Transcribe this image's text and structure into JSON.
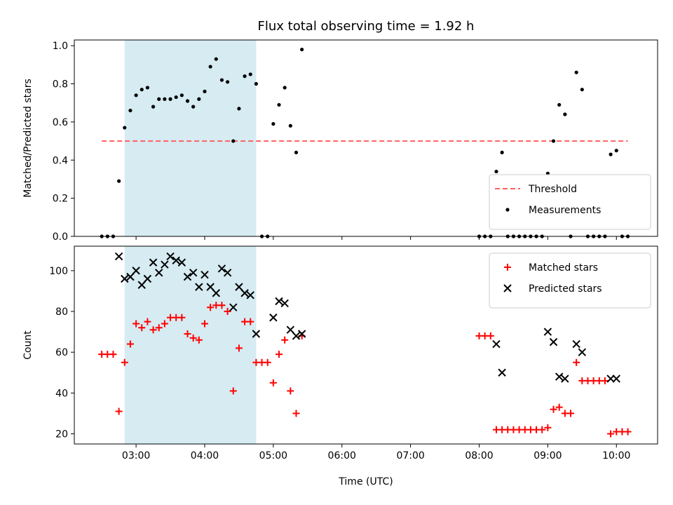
{
  "chart_data": {
    "title": "Flux total observing time = 1.92 h",
    "shared_x": {
      "label": "Time (UTC)",
      "range_hours": [
        2.1,
        10.6
      ],
      "ticks": [
        "03:00",
        "04:00",
        "05:00",
        "06:00",
        "07:00",
        "08:00",
        "09:00",
        "10:00"
      ],
      "shaded_interval": {
        "start": "02:50",
        "end": "04:45",
        "color": "#add8e6"
      }
    },
    "panels": [
      {
        "type": "scatter",
        "ylabel": "Matched/Predicted stars",
        "ylim": [
          0,
          1.03
        ],
        "yticks": [
          "0.0",
          "0.2",
          "0.4",
          "0.6",
          "0.8",
          "1.0"
        ],
        "legend_position": "lower-right",
        "threshold": {
          "name": "Threshold",
          "value": 0.5,
          "x_start": "02:30",
          "x_end": "10:10",
          "color": "#ff6060",
          "style": "dashed"
        },
        "series": [
          {
            "name": "Measurements",
            "color": "#000000",
            "points": [
              [
                "02:30",
                0
              ],
              [
                "02:35",
                0
              ],
              [
                "02:40",
                0
              ],
              [
                "02:45",
                0.29
              ],
              [
                "02:50",
                0.57
              ],
              [
                "02:55",
                0.66
              ],
              [
                "03:00",
                0.74
              ],
              [
                "03:05",
                0.77
              ],
              [
                "03:10",
                0.78
              ],
              [
                "03:15",
                0.68
              ],
              [
                "03:20",
                0.72
              ],
              [
                "03:25",
                0.72
              ],
              [
                "03:30",
                0.72
              ],
              [
                "03:35",
                0.73
              ],
              [
                "03:40",
                0.74
              ],
              [
                "03:45",
                0.71
              ],
              [
                "03:50",
                0.68
              ],
              [
                "03:55",
                0.72
              ],
              [
                "04:00",
                0.76
              ],
              [
                "04:05",
                0.89
              ],
              [
                "04:10",
                0.93
              ],
              [
                "04:15",
                0.82
              ],
              [
                "04:20",
                0.81
              ],
              [
                "04:25",
                0.5
              ],
              [
                "04:30",
                0.67
              ],
              [
                "04:35",
                0.84
              ],
              [
                "04:40",
                0.85
              ],
              [
                "04:45",
                0.8
              ],
              [
                "04:50",
                0
              ],
              [
                "04:55",
                0
              ],
              [
                "05:00",
                0.59
              ],
              [
                "05:05",
                0.69
              ],
              [
                "05:10",
                0.78
              ],
              [
                "05:15",
                0.58
              ],
              [
                "05:20",
                0.44
              ],
              [
                "05:25",
                0.98
              ],
              [
                "08:00",
                0
              ],
              [
                "08:05",
                0
              ],
              [
                "08:10",
                0
              ],
              [
                "08:15",
                0.34
              ],
              [
                "08:20",
                0.44
              ],
              [
                "08:25",
                0
              ],
              [
                "08:30",
                0
              ],
              [
                "08:35",
                0
              ],
              [
                "08:40",
                0
              ],
              [
                "08:45",
                0
              ],
              [
                "08:50",
                0
              ],
              [
                "08:55",
                0
              ],
              [
                "09:00",
                0.33
              ],
              [
                "09:05",
                0.5
              ],
              [
                "09:10",
                0.69
              ],
              [
                "09:15",
                0.64
              ],
              [
                "09:20",
                0
              ],
              [
                "09:25",
                0.86
              ],
              [
                "09:30",
                0.77
              ],
              [
                "09:35",
                0
              ],
              [
                "09:40",
                0
              ],
              [
                "09:45",
                0
              ],
              [
                "09:50",
                0
              ],
              [
                "09:55",
                0.43
              ],
              [
                "10:00",
                0.45
              ],
              [
                "10:05",
                0
              ],
              [
                "10:10",
                0
              ]
            ]
          }
        ]
      },
      {
        "type": "scatter",
        "ylabel": "Count",
        "ylim": [
          15,
          112
        ],
        "yticks": [
          "20",
          "40",
          "60",
          "80",
          "100"
        ],
        "legend_position": "upper-right",
        "series": [
          {
            "name": "Matched stars",
            "color": "#ff0000",
            "marker": "+",
            "points": [
              [
                "02:30",
                59
              ],
              [
                "02:35",
                59
              ],
              [
                "02:40",
                59
              ],
              [
                "02:45",
                31
              ],
              [
                "02:50",
                55
              ],
              [
                "02:55",
                64
              ],
              [
                "03:00",
                74
              ],
              [
                "03:05",
                72
              ],
              [
                "03:10",
                75
              ],
              [
                "03:15",
                71
              ],
              [
                "03:20",
                72
              ],
              [
                "03:25",
                74
              ],
              [
                "03:30",
                77
              ],
              [
                "03:35",
                77
              ],
              [
                "03:40",
                77
              ],
              [
                "03:45",
                69
              ],
              [
                "03:50",
                67
              ],
              [
                "03:55",
                66
              ],
              [
                "04:00",
                74
              ],
              [
                "04:05",
                82
              ],
              [
                "04:10",
                83
              ],
              [
                "04:15",
                83
              ],
              [
                "04:20",
                80
              ],
              [
                "04:25",
                41
              ],
              [
                "04:30",
                62
              ],
              [
                "04:35",
                75
              ],
              [
                "04:40",
                75
              ],
              [
                "04:45",
                55
              ],
              [
                "04:50",
                55
              ],
              [
                "04:55",
                55
              ],
              [
                "05:00",
                45
              ],
              [
                "05:05",
                59
              ],
              [
                "05:10",
                66
              ],
              [
                "05:15",
                41
              ],
              [
                "05:20",
                30
              ],
              [
                "05:25",
                68
              ],
              [
                "08:00",
                68
              ],
              [
                "08:05",
                68
              ],
              [
                "08:10",
                68
              ],
              [
                "08:15",
                22
              ],
              [
                "08:20",
                22
              ],
              [
                "08:25",
                22
              ],
              [
                "08:30",
                22
              ],
              [
                "08:35",
                22
              ],
              [
                "08:40",
                22
              ],
              [
                "08:45",
                22
              ],
              [
                "08:50",
                22
              ],
              [
                "08:55",
                22
              ],
              [
                "09:00",
                23
              ],
              [
                "09:05",
                32
              ],
              [
                "09:10",
                33
              ],
              [
                "09:15",
                30
              ],
              [
                "09:20",
                30
              ],
              [
                "09:25",
                55
              ],
              [
                "09:30",
                46
              ],
              [
                "09:35",
                46
              ],
              [
                "09:40",
                46
              ],
              [
                "09:45",
                46
              ],
              [
                "09:50",
                46
              ],
              [
                "09:55",
                20
              ],
              [
                "10:00",
                21
              ],
              [
                "10:05",
                21
              ],
              [
                "10:10",
                21
              ]
            ]
          },
          {
            "name": "Predicted stars",
            "color": "#000000",
            "marker": "x",
            "points": [
              [
                "02:45",
                107
              ],
              [
                "02:50",
                96
              ],
              [
                "02:55",
                97
              ],
              [
                "03:00",
                100
              ],
              [
                "03:05",
                93
              ],
              [
                "03:10",
                96
              ],
              [
                "03:15",
                104
              ],
              [
                "03:20",
                99
              ],
              [
                "03:25",
                103
              ],
              [
                "03:30",
                107
              ],
              [
                "03:35",
                105
              ],
              [
                "03:40",
                104
              ],
              [
                "03:45",
                97
              ],
              [
                "03:50",
                99
              ],
              [
                "03:55",
                92
              ],
              [
                "04:00",
                98
              ],
              [
                "04:05",
                92
              ],
              [
                "04:10",
                89
              ],
              [
                "04:15",
                101
              ],
              [
                "04:20",
                99
              ],
              [
                "04:25",
                82
              ],
              [
                "04:30",
                92
              ],
              [
                "04:35",
                89
              ],
              [
                "04:40",
                88
              ],
              [
                "04:45",
                69
              ],
              [
                "05:00",
                77
              ],
              [
                "05:05",
                85
              ],
              [
                "05:10",
                84
              ],
              [
                "05:15",
                71
              ],
              [
                "05:20",
                68
              ],
              [
                "05:25",
                69
              ],
              [
                "08:15",
                64
              ],
              [
                "08:20",
                50
              ],
              [
                "09:00",
                70
              ],
              [
                "09:05",
                65
              ],
              [
                "09:10",
                48
              ],
              [
                "09:15",
                47
              ],
              [
                "09:25",
                64
              ],
              [
                "09:30",
                60
              ],
              [
                "09:55",
                47
              ],
              [
                "10:00",
                47
              ]
            ]
          }
        ]
      }
    ]
  }
}
